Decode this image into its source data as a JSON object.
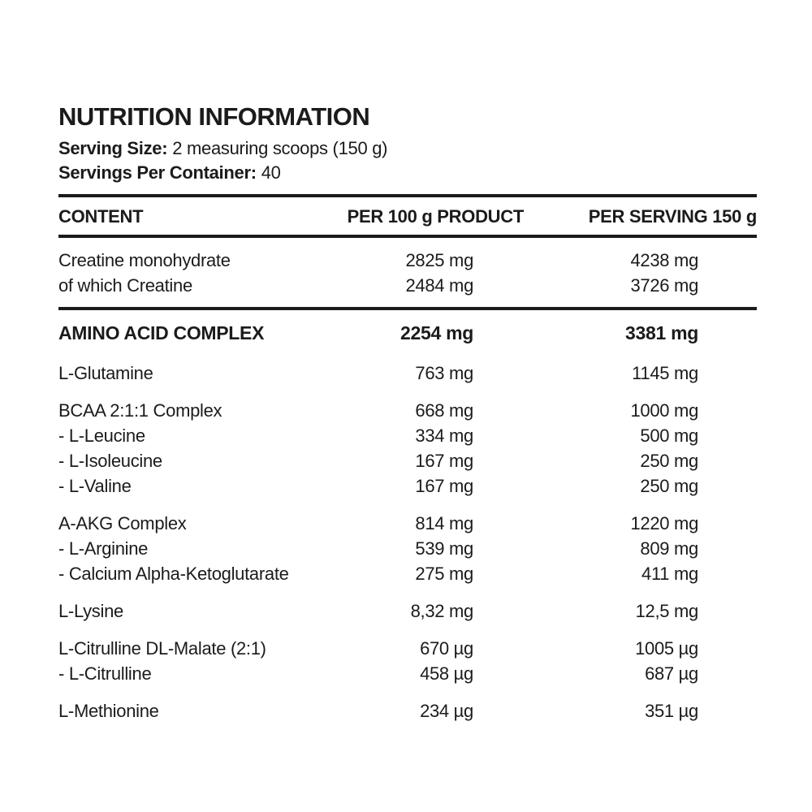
{
  "header": {
    "title": "NUTRITION INFORMATION",
    "serving_size_label": "Serving Size:",
    "serving_size_value": "2 measuring scoops (150 g)",
    "servings_label": "Servings Per Container:",
    "servings_value": "40"
  },
  "table": {
    "columns": [
      "CONTENT",
      "PER 100 g PRODUCT",
      "PER SERVING 150 g"
    ],
    "groups": [
      {
        "first": true,
        "rule_after": true,
        "rows": [
          {
            "content": "Creatine monohydrate",
            "per_100g": "2825 mg",
            "per_serving": "4238 mg"
          },
          {
            "content": "of which Creatine",
            "per_100g": "2484 mg",
            "per_serving": "3726 mg"
          }
        ]
      },
      {
        "bold": true,
        "rows": [
          {
            "content": "AMINO ACID COMPLEX",
            "per_100g": "2254 mg",
            "per_serving": "3381 mg"
          }
        ]
      },
      {
        "rows": [
          {
            "content": "L-Glutamine",
            "per_100g": "763 mg",
            "per_serving": "1145 mg"
          }
        ]
      },
      {
        "rows": [
          {
            "content": "BCAA 2:1:1 Complex",
            "per_100g": "668 mg",
            "per_serving": "1000 mg"
          },
          {
            "content": "- L-Leucine",
            "per_100g": "334 mg",
            "per_serving": "500 mg"
          },
          {
            "content": "- L-Isoleucine",
            "per_100g": "167 mg",
            "per_serving": "250 mg"
          },
          {
            "content": "- L-Valine",
            "per_100g": "167 mg",
            "per_serving": "250 mg"
          }
        ]
      },
      {
        "rows": [
          {
            "content": "A-AKG Complex",
            "per_100g": "814 mg",
            "per_serving": "1220 mg"
          },
          {
            "content": "- L-Arginine",
            "per_100g": "539 mg",
            "per_serving": "809 mg"
          },
          {
            "content": "- Calcium Alpha-Ketoglutarate",
            "per_100g": "275 mg",
            "per_serving": "411 mg"
          }
        ]
      },
      {
        "rows": [
          {
            "content": "L-Lysine",
            "per_100g": "8,32 mg",
            "per_serving": "12,5 mg"
          }
        ]
      },
      {
        "rows": [
          {
            "content": "L-Citrulline DL-Malate (2:1)",
            "per_100g": "670 µg",
            "per_serving": "1005 µg"
          },
          {
            "content": "- L-Citrulline",
            "per_100g": "458 µg",
            "per_serving": "687 µg"
          }
        ]
      },
      {
        "rows": [
          {
            "content": "L-Methionine",
            "per_100g": "234 µg",
            "per_serving": "351 µg"
          }
        ]
      }
    ]
  },
  "colors": {
    "background": "#ffffff",
    "text": "#1b1b1b",
    "rule": "#1b1b1b"
  }
}
